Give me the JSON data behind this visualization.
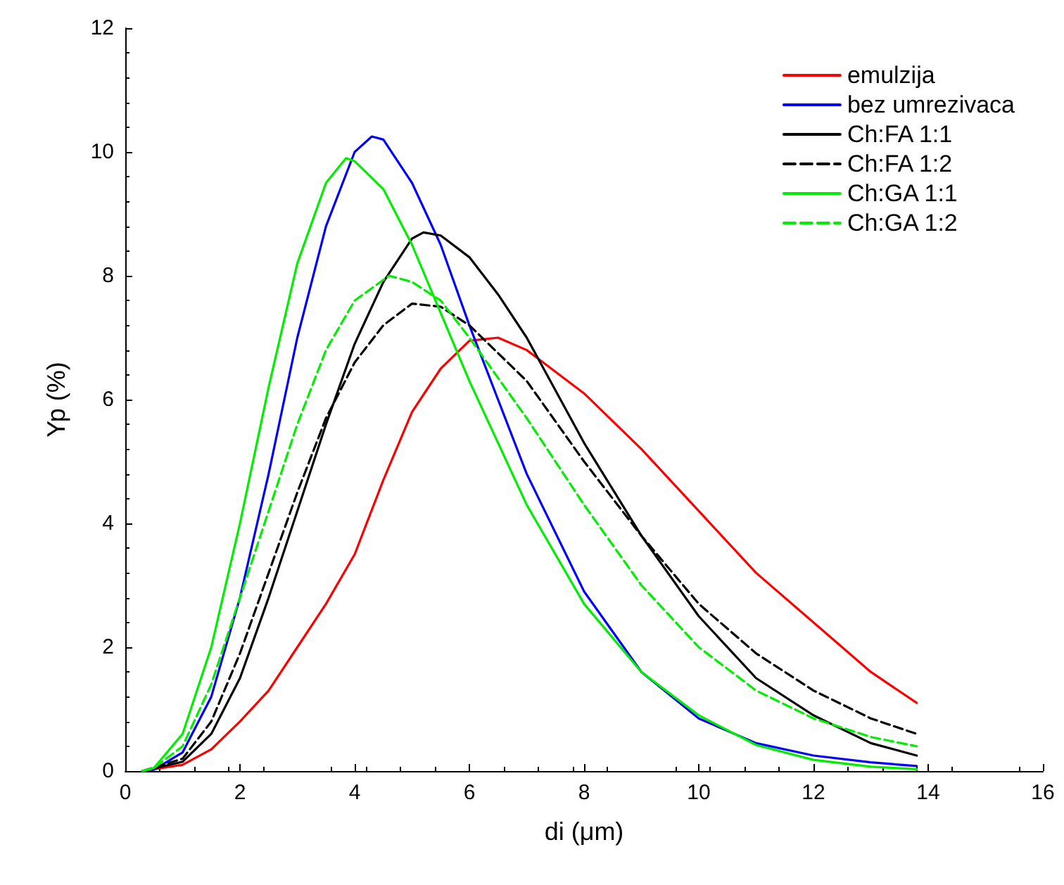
{
  "chart_data": {
    "type": "line",
    "xlabel": "di (μm)",
    "ylabel": "Yp (%)",
    "xlim": [
      0,
      16
    ],
    "xticks": [
      0,
      2,
      4,
      6,
      8,
      10,
      12,
      14,
      16
    ],
    "ylim": [
      0,
      12
    ],
    "yticks": [
      0,
      2,
      4,
      6,
      8,
      10,
      12
    ],
    "grid": false,
    "legend": "top right",
    "marker": "none",
    "series": [
      {
        "name": "emulzija",
        "color": "#ff0000",
        "line_style": "solid",
        "x": [
          0.3,
          1,
          1.5,
          2,
          2.5,
          3,
          3.5,
          4,
          4.5,
          5,
          5.5,
          6,
          6.5,
          7,
          8,
          9,
          10,
          11,
          12,
          13,
          13.8
        ],
        "values": [
          0,
          0.1,
          0.35,
          0.8,
          1.3,
          2,
          2.7,
          3.5,
          4.7,
          5.8,
          6.5,
          6.95,
          7,
          6.8,
          6.1,
          5.2,
          4.2,
          3.2,
          2.4,
          1.6,
          1.1
        ]
      },
      {
        "name": "bez umrezivaca",
        "color": "#0000ff",
        "line_style": "solid",
        "x": [
          0.3,
          0.5,
          1,
          1.5,
          2,
          2.5,
          3,
          3.5,
          4,
          4.3,
          4.5,
          5,
          5.5,
          6,
          7,
          8,
          9,
          10,
          11,
          12,
          13,
          13.8
        ],
        "values": [
          0,
          0.02,
          0.3,
          1.2,
          2.8,
          4.8,
          7,
          8.8,
          10,
          10.25,
          10.2,
          9.5,
          8.5,
          7.2,
          4.8,
          2.9,
          1.6,
          0.85,
          0.45,
          0.25,
          0.14,
          0.08
        ]
      },
      {
        "name": "Ch:FA 1:1",
        "color": "#000000",
        "line_style": "solid",
        "x": [
          0.3,
          1,
          1.5,
          2,
          2.5,
          3,
          3.5,
          4,
          4.5,
          5,
          5.2,
          5.5,
          6,
          6.5,
          7,
          8,
          9,
          10,
          11,
          12,
          13,
          13.8
        ],
        "values": [
          0,
          0.15,
          0.6,
          1.5,
          2.8,
          4.2,
          5.6,
          6.9,
          7.9,
          8.6,
          8.7,
          8.65,
          8.3,
          7.7,
          7,
          5.3,
          3.8,
          2.5,
          1.5,
          0.9,
          0.45,
          0.25
        ]
      },
      {
        "name": "Ch:FA 1:2",
        "color": "#000000",
        "line_style": "dashed",
        "x": [
          0.3,
          1,
          1.5,
          2,
          2.5,
          3,
          3.5,
          4,
          4.5,
          5,
          5.5,
          6,
          7,
          8,
          9,
          10,
          11,
          12,
          13,
          13.8
        ],
        "values": [
          0,
          0.2,
          0.8,
          1.9,
          3.2,
          4.5,
          5.7,
          6.6,
          7.2,
          7.55,
          7.5,
          7.2,
          6.3,
          5,
          3.8,
          2.7,
          1.9,
          1.3,
          0.85,
          0.6
        ]
      },
      {
        "name": "Ch:GA 1:1",
        "color": "#00ee00",
        "line_style": "solid",
        "x": [
          0.3,
          0.5,
          1,
          1.5,
          2,
          2.5,
          3,
          3.5,
          3.85,
          4,
          4.5,
          5,
          5.5,
          6,
          7,
          8,
          9,
          10,
          11,
          12,
          13,
          13.8
        ],
        "values": [
          0,
          0.05,
          0.6,
          2,
          4,
          6.2,
          8.2,
          9.5,
          9.9,
          9.85,
          9.4,
          8.5,
          7.4,
          6.3,
          4.3,
          2.7,
          1.6,
          0.9,
          0.42,
          0.18,
          0.07,
          0.03
        ]
      },
      {
        "name": "Ch:GA 1:2",
        "color": "#00ee00",
        "line_style": "dashed",
        "x": [
          0.3,
          0.5,
          1,
          1.5,
          2,
          2.5,
          3,
          3.5,
          4,
          4.6,
          5,
          5.5,
          6,
          7,
          8,
          9,
          10,
          11,
          12,
          13,
          13.8
        ],
        "values": [
          0,
          0.05,
          0.4,
          1.4,
          2.8,
          4.2,
          5.6,
          6.8,
          7.6,
          8,
          7.9,
          7.6,
          7,
          5.7,
          4.3,
          3,
          2,
          1.3,
          0.85,
          0.55,
          0.4
        ]
      }
    ]
  }
}
